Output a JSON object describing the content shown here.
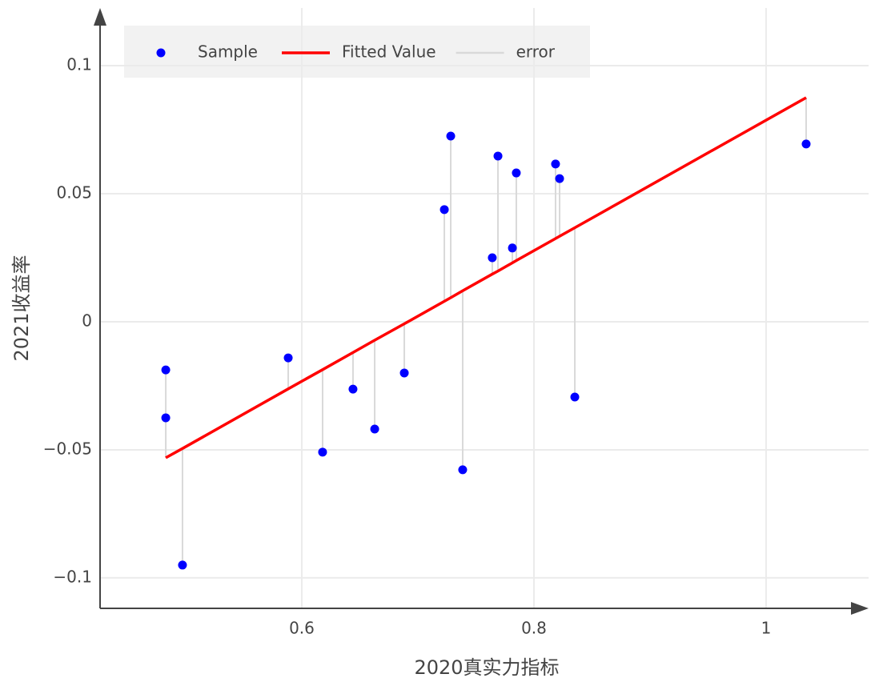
{
  "chart_data": {
    "type": "scatter",
    "x_label": "2020真实力指标",
    "y_label": "2021收益率",
    "x": [
      0.4828,
      0.4828,
      0.4972,
      0.5883,
      0.6179,
      0.6441,
      0.6628,
      0.6883,
      0.7228,
      0.7283,
      0.7386,
      0.7641,
      0.769,
      0.7814,
      0.7848,
      0.8186,
      0.8221,
      0.8352,
      1.0345
    ],
    "series": [
      {
        "name": "Sample",
        "color": "#0000ff",
        "mode": "markers",
        "values": [
          -0.0188,
          -0.0375,
          -0.095,
          -0.0141,
          -0.0509,
          -0.0263,
          -0.0419,
          -0.02,
          0.0438,
          0.0725,
          -0.0578,
          0.025,
          0.0647,
          0.0288,
          0.0581,
          0.0616,
          0.0559,
          -0.0294,
          0.0694
        ]
      },
      {
        "name": "Fitted Value",
        "color": "#ff0000",
        "mode": "lines",
        "values": [
          -0.0531,
          -0.0531,
          -0.0495,
          -0.0262,
          -0.0187,
          -0.012,
          -0.0072,
          -0.0008,
          0.008,
          0.0094,
          0.0121,
          0.0186,
          0.0198,
          0.023,
          0.0239,
          0.0325,
          0.0334,
          0.0367,
          0.0875
        ]
      },
      {
        "name": "error",
        "color": "#d9d9d9",
        "mode": "error"
      }
    ],
    "xlim": [
      0.4262,
      1.0883
    ],
    "ylim": [
      -0.1119,
      0.1225
    ],
    "xticks": [
      0.6,
      0.8,
      1
    ],
    "yticks": [
      {
        "value": -0.1,
        "label": "−0.1"
      },
      {
        "value": -0.05,
        "label": "−0.05"
      },
      0,
      0.05,
      0.1
    ],
    "grid": true
  }
}
